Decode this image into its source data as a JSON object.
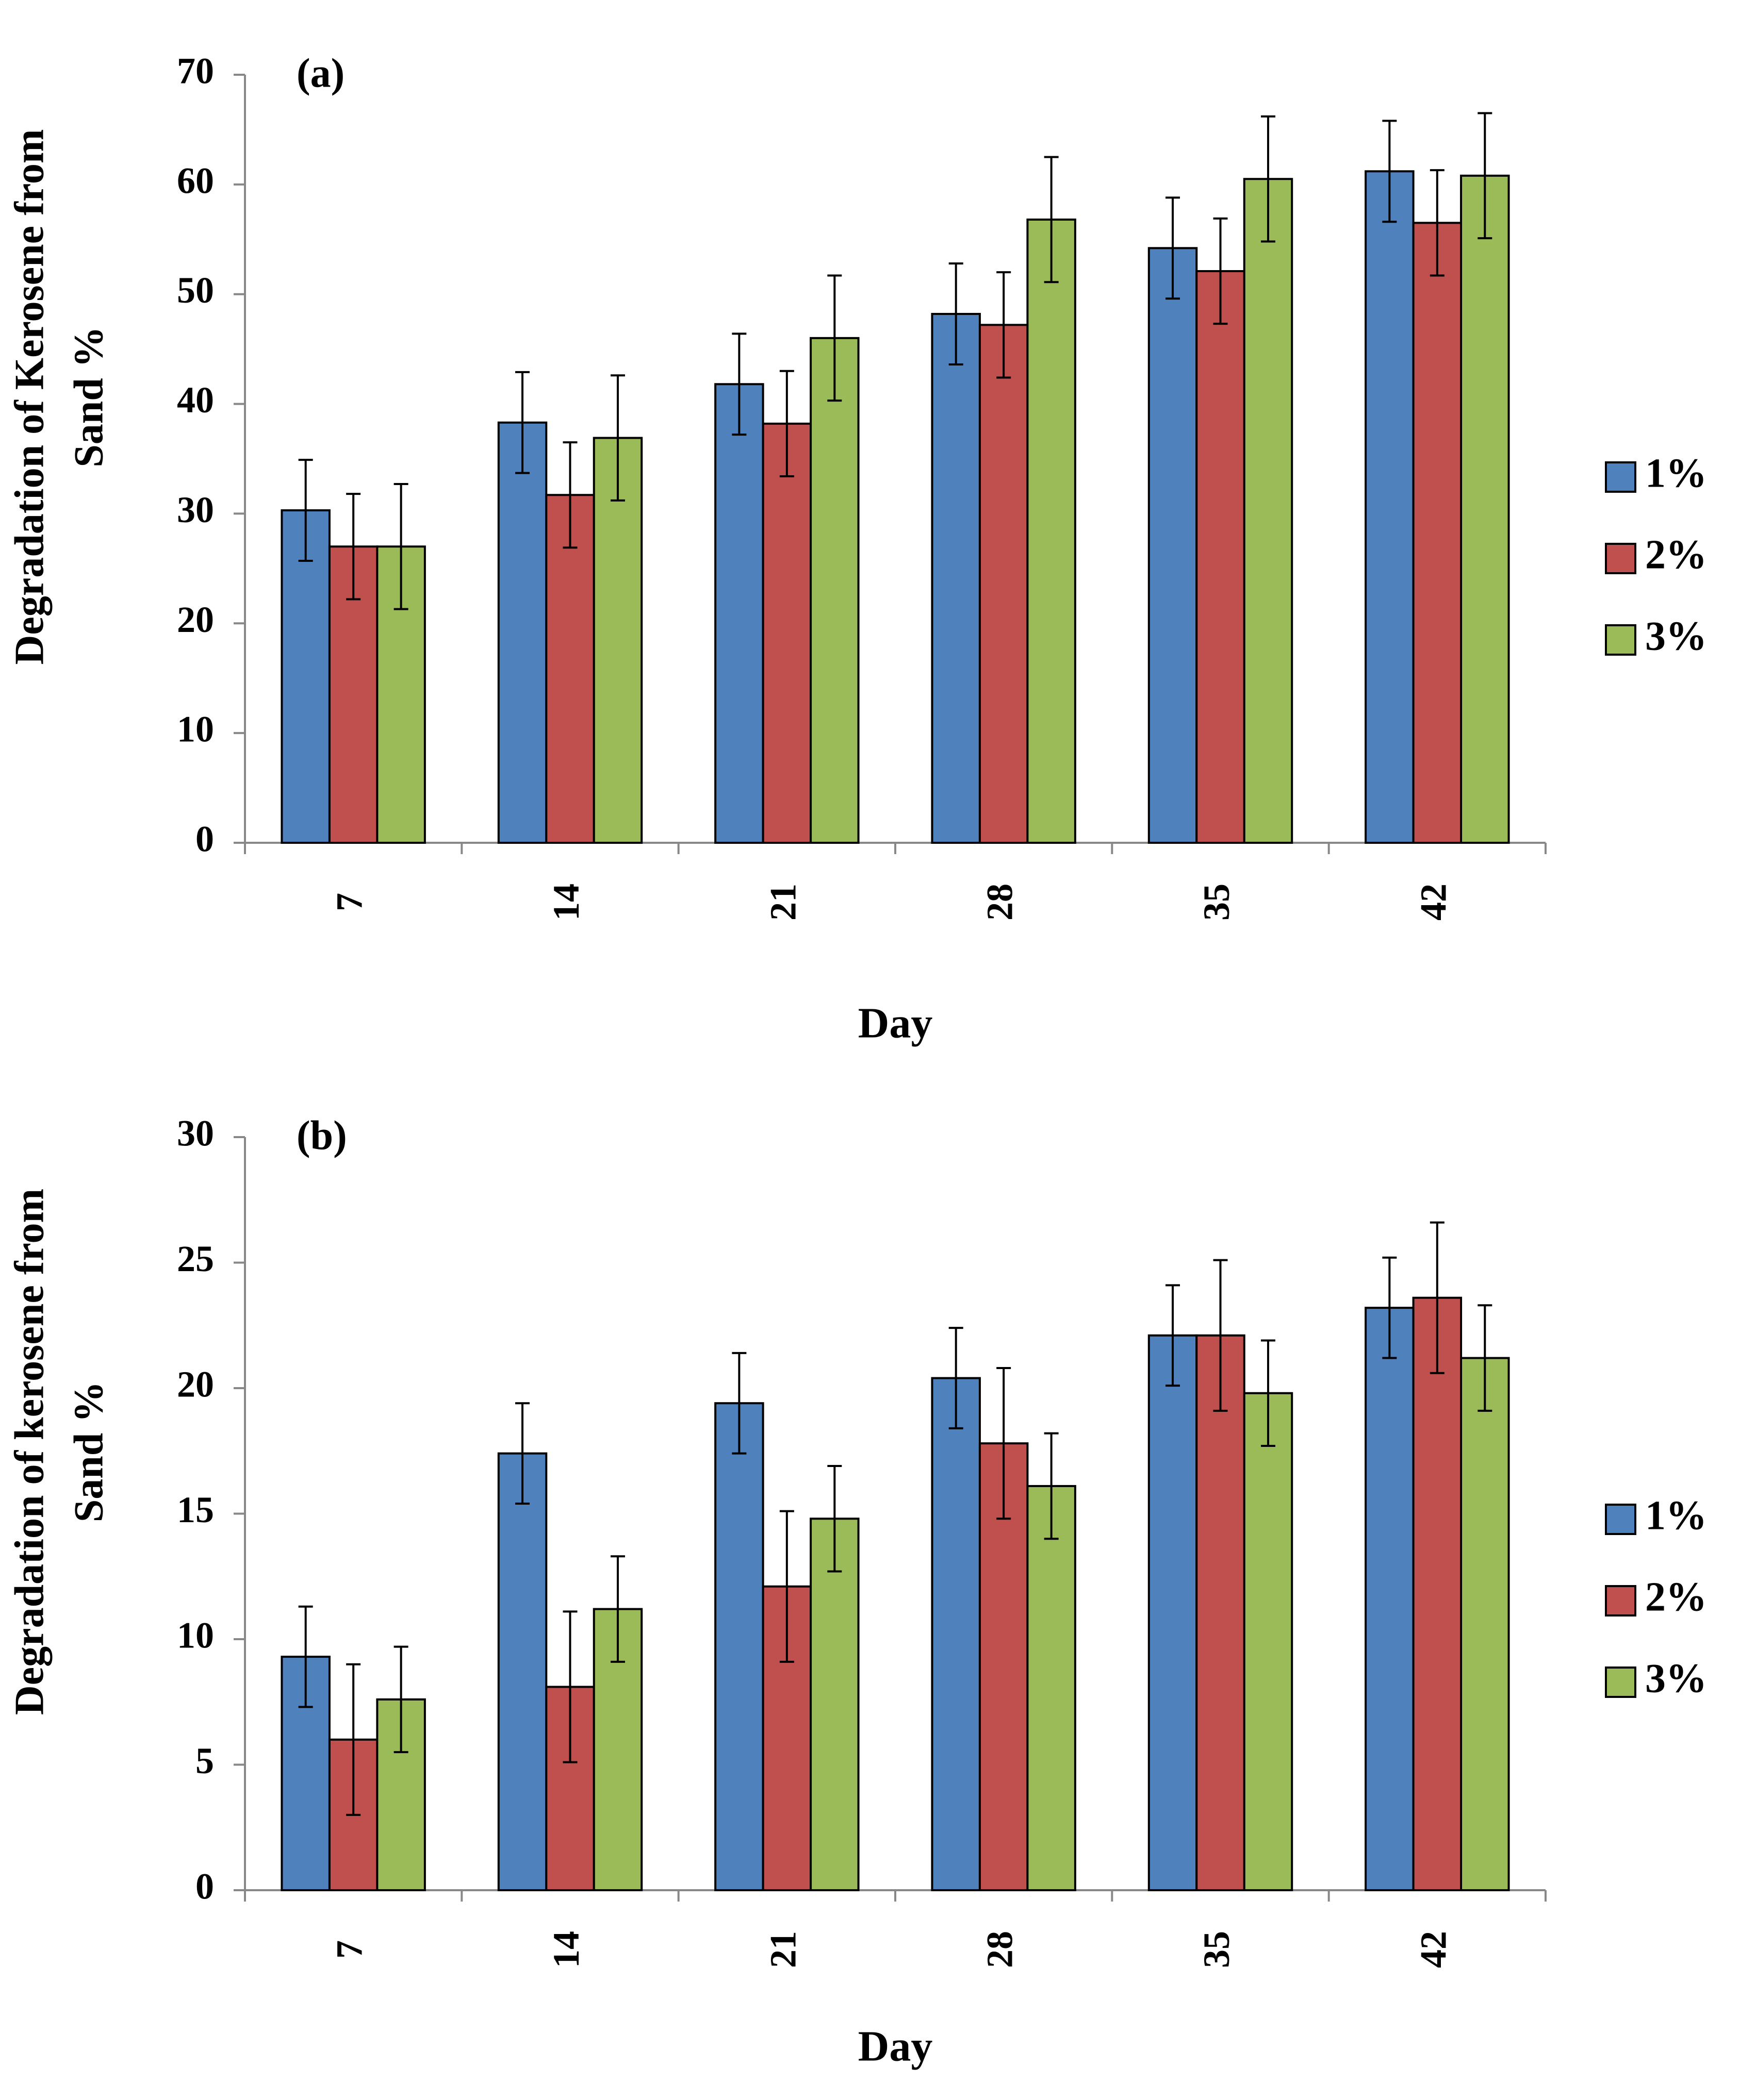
{
  "chart_data": [
    {
      "type": "bar",
      "annotation": "(a)",
      "y_label": [
        "Degradation of Kerosene from",
        "Sand %"
      ],
      "x_label": "Day",
      "categories": [
        "7",
        "14",
        "21",
        "28",
        "35",
        "42"
      ],
      "series": [
        {
          "name": "1%",
          "color": "#4f81bd",
          "values": [
            30.3,
            38.3,
            41.8,
            48.2,
            54.2,
            61.2
          ],
          "errors": [
            4.6,
            4.6,
            4.6,
            4.6,
            4.6,
            4.6
          ]
        },
        {
          "name": "2%",
          "color": "#c0504d",
          "values": [
            27,
            31.7,
            38.2,
            47.2,
            52.1,
            56.5
          ],
          "errors": [
            4.8,
            4.8,
            4.8,
            4.8,
            4.8,
            4.8
          ]
        },
        {
          "name": "3%",
          "color": "#9bbb59",
          "values": [
            27,
            36.9,
            46,
            56.8,
            60.5,
            60.8
          ],
          "errors": [
            5.7,
            5.7,
            5.7,
            5.7,
            5.7,
            5.7
          ]
        }
      ],
      "ylim": [
        0,
        70
      ],
      "yticks": [
        0,
        10,
        20,
        30,
        40,
        50,
        60,
        70
      ],
      "legend": "right"
    },
    {
      "type": "bar",
      "annotation": "(b)",
      "y_label": [
        "Degradation of kerosene from",
        "Sand %"
      ],
      "x_label": "Day",
      "categories": [
        "7",
        "14",
        "21",
        "28",
        "35",
        "42"
      ],
      "series": [
        {
          "name": "1%",
          "color": "#4f81bd",
          "values": [
            9.3,
            17.4,
            19.4,
            20.4,
            22.1,
            23.2
          ],
          "errors": [
            2,
            2,
            2,
            2,
            2,
            2
          ]
        },
        {
          "name": "2%",
          "color": "#c0504d",
          "values": [
            6,
            8.1,
            12.1,
            17.8,
            22.1,
            23.6
          ],
          "errors": [
            3,
            3,
            3,
            3,
            3,
            3
          ]
        },
        {
          "name": "3%",
          "color": "#9bbb59",
          "values": [
            7.6,
            11.2,
            14.8,
            16.1,
            19.8,
            21.2
          ],
          "errors": [
            2.1,
            2.1,
            2.1,
            2.1,
            2.1,
            2.1
          ]
        }
      ],
      "ylim": [
        0,
        30
      ],
      "yticks": [
        0,
        5,
        10,
        15,
        20,
        25,
        30
      ],
      "legend": "right"
    }
  ]
}
